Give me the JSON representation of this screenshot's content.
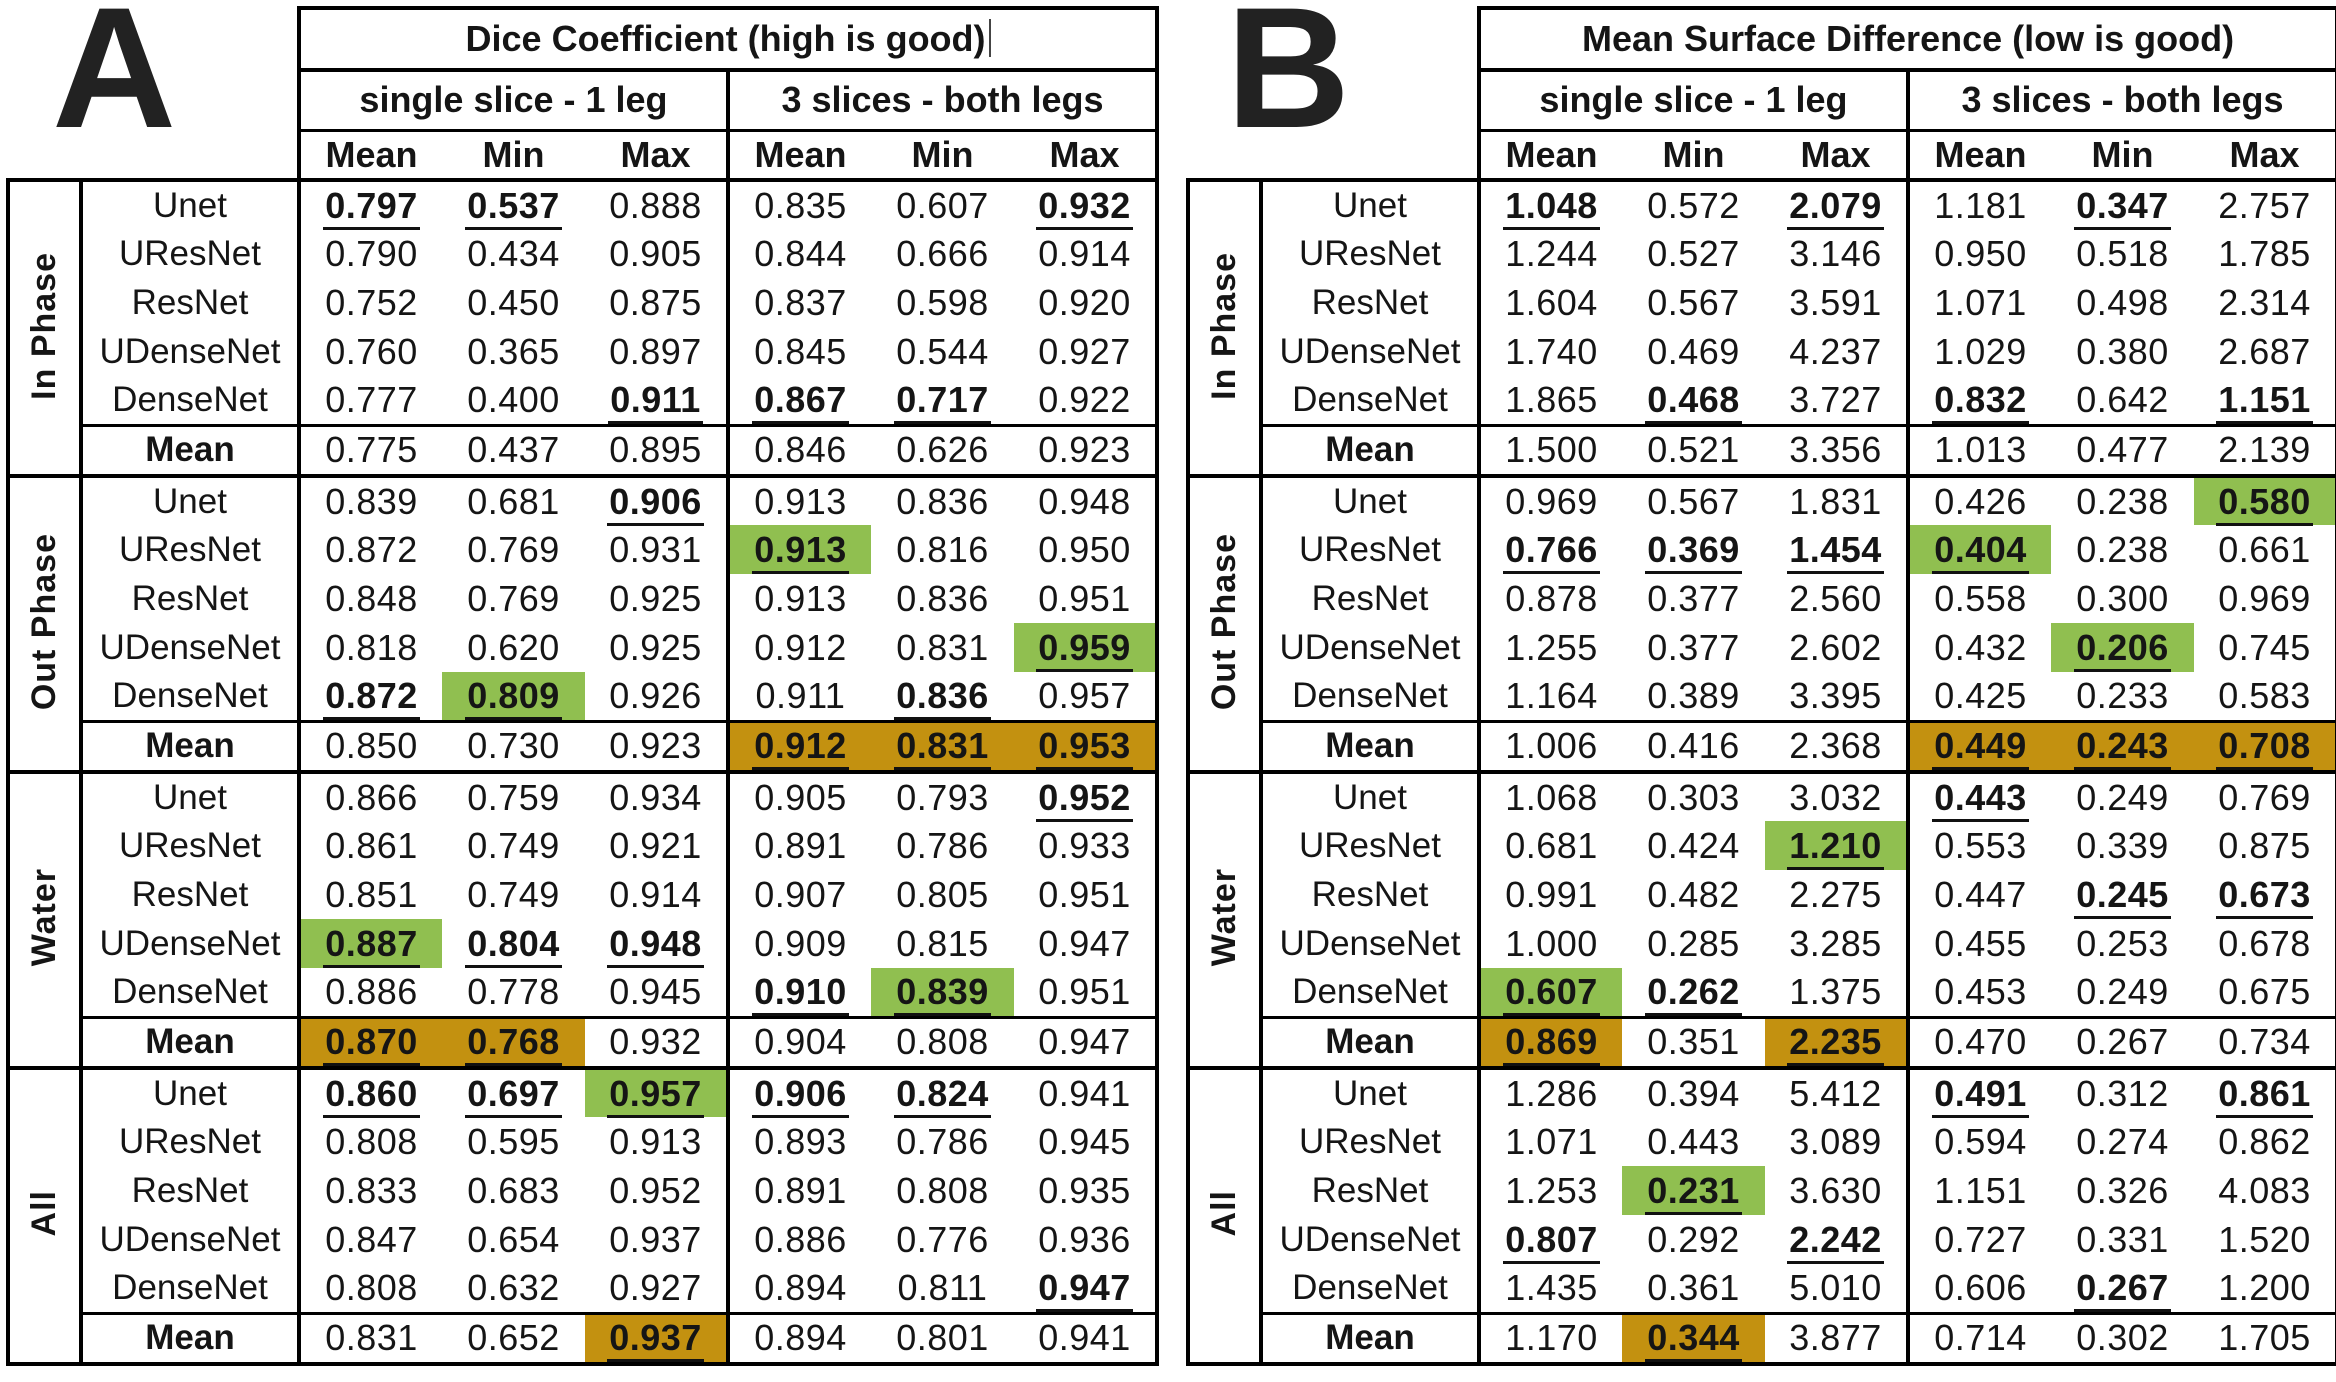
{
  "styles": {
    "highlight_green": "#90bf50",
    "highlight_orange": "#c39110",
    "text_color": "#151515",
    "border_color": "#000000"
  },
  "panels": [
    {
      "letter": "A",
      "title": "Dice Coefficient (high is good)",
      "title_cursor": true,
      "groups": [
        "single slice - 1 leg",
        "3 slices - both legs"
      ],
      "columns": [
        "Mean",
        "Min",
        "Max",
        "Mean",
        "Min",
        "Max"
      ],
      "sections": [
        {
          "label": "In Phase",
          "rows": [
            {
              "model": "Unet",
              "values": [
                {
                  "v": "0.797",
                  "s": "u"
                },
                {
                  "v": "0.537",
                  "s": "u"
                },
                "0.888",
                "0.835",
                "0.607",
                {
                  "v": "0.932",
                  "s": "u"
                }
              ]
            },
            {
              "model": "UResNet",
              "values": [
                "0.790",
                "0.434",
                "0.905",
                "0.844",
                "0.666",
                "0.914"
              ]
            },
            {
              "model": "ResNet",
              "values": [
                "0.752",
                "0.450",
                "0.875",
                "0.837",
                "0.598",
                "0.920"
              ]
            },
            {
              "model": "UDenseNet",
              "values": [
                "0.760",
                "0.365",
                "0.897",
                "0.845",
                "0.544",
                "0.927"
              ]
            },
            {
              "model": "DenseNet",
              "values": [
                "0.777",
                "0.400",
                {
                  "v": "0.911",
                  "s": "u"
                },
                {
                  "v": "0.867",
                  "s": "u"
                },
                {
                  "v": "0.717",
                  "s": "u"
                },
                "0.922"
              ]
            },
            {
              "model": "Mean",
              "mean": true,
              "values": [
                "0.775",
                "0.437",
                "0.895",
                "0.846",
                "0.626",
                "0.923"
              ]
            }
          ]
        },
        {
          "label": "Out Phase",
          "rows": [
            {
              "model": "Unet",
              "values": [
                "0.839",
                "0.681",
                {
                  "v": "0.906",
                  "s": "u"
                },
                "0.913",
                "0.836",
                "0.948"
              ]
            },
            {
              "model": "UResNet",
              "values": [
                "0.872",
                "0.769",
                "0.931",
                {
                  "v": "0.913",
                  "s": "g"
                },
                "0.816",
                "0.950"
              ]
            },
            {
              "model": "ResNet",
              "values": [
                "0.848",
                "0.769",
                "0.925",
                "0.913",
                "0.836",
                "0.951"
              ]
            },
            {
              "model": "UDenseNet",
              "values": [
                "0.818",
                "0.620",
                "0.925",
                "0.912",
                "0.831",
                {
                  "v": "0.959",
                  "s": "g"
                }
              ]
            },
            {
              "model": "DenseNet",
              "values": [
                {
                  "v": "0.872",
                  "s": "u"
                },
                {
                  "v": "0.809",
                  "s": "g"
                },
                "0.926",
                "0.911",
                {
                  "v": "0.836",
                  "s": "u"
                },
                "0.957"
              ]
            },
            {
              "model": "Mean",
              "mean": true,
              "values": [
                "0.850",
                "0.730",
                "0.923",
                {
                  "v": "0.912",
                  "s": "o"
                },
                {
                  "v": "0.831",
                  "s": "o"
                },
                {
                  "v": "0.953",
                  "s": "o"
                }
              ]
            }
          ]
        },
        {
          "label": "Water",
          "rows": [
            {
              "model": "Unet",
              "values": [
                "0.866",
                "0.759",
                "0.934",
                "0.905",
                "0.793",
                {
                  "v": "0.952",
                  "s": "u"
                }
              ]
            },
            {
              "model": "UResNet",
              "values": [
                "0.861",
                "0.749",
                "0.921",
                "0.891",
                "0.786",
                "0.933"
              ]
            },
            {
              "model": "ResNet",
              "values": [
                "0.851",
                "0.749",
                "0.914",
                "0.907",
                "0.805",
                "0.951"
              ]
            },
            {
              "model": "UDenseNet",
              "values": [
                {
                  "v": "0.887",
                  "s": "g"
                },
                {
                  "v": "0.804",
                  "s": "u"
                },
                {
                  "v": "0.948",
                  "s": "u"
                },
                "0.909",
                "0.815",
                "0.947"
              ]
            },
            {
              "model": "DenseNet",
              "values": [
                "0.886",
                "0.778",
                "0.945",
                {
                  "v": "0.910",
                  "s": "u"
                },
                {
                  "v": "0.839",
                  "s": "g"
                },
                "0.951"
              ]
            },
            {
              "model": "Mean",
              "mean": true,
              "values": [
                {
                  "v": "0.870",
                  "s": "o"
                },
                {
                  "v": "0.768",
                  "s": "o"
                },
                "0.932",
                "0.904",
                "0.808",
                "0.947"
              ]
            }
          ]
        },
        {
          "label": "All",
          "rows": [
            {
              "model": "Unet",
              "values": [
                {
                  "v": "0.860",
                  "s": "u"
                },
                {
                  "v": "0.697",
                  "s": "u"
                },
                {
                  "v": "0.957",
                  "s": "g"
                },
                {
                  "v": "0.906",
                  "s": "u"
                },
                {
                  "v": "0.824",
                  "s": "u"
                },
                "0.941"
              ]
            },
            {
              "model": "UResNet",
              "values": [
                "0.808",
                "0.595",
                "0.913",
                "0.893",
                "0.786",
                "0.945"
              ]
            },
            {
              "model": "ResNet",
              "values": [
                "0.833",
                "0.683",
                "0.952",
                "0.891",
                "0.808",
                "0.935"
              ]
            },
            {
              "model": "UDenseNet",
              "values": [
                "0.847",
                "0.654",
                "0.937",
                "0.886",
                "0.776",
                "0.936"
              ]
            },
            {
              "model": "DenseNet",
              "values": [
                "0.808",
                "0.632",
                "0.927",
                "0.894",
                "0.811",
                {
                  "v": "0.947",
                  "s": "u"
                }
              ]
            },
            {
              "model": "Mean",
              "mean": true,
              "values": [
                "0.831",
                "0.652",
                {
                  "v": "0.937",
                  "s": "o"
                },
                "0.894",
                "0.801",
                "0.941"
              ]
            }
          ]
        }
      ]
    },
    {
      "letter": "B",
      "title": "Mean Surface Difference (low is good)",
      "title_cursor": false,
      "groups": [
        "single slice - 1 leg",
        "3 slices - both legs"
      ],
      "columns": [
        "Mean",
        "Min",
        "Max",
        "Mean",
        "Min",
        "Max"
      ],
      "sections": [
        {
          "label": "In Phase",
          "rows": [
            {
              "model": "Unet",
              "values": [
                {
                  "v": "1.048",
                  "s": "u"
                },
                "0.572",
                {
                  "v": "2.079",
                  "s": "u"
                },
                "1.181",
                {
                  "v": "0.347",
                  "s": "u"
                },
                "2.757"
              ]
            },
            {
              "model": "UResNet",
              "values": [
                "1.244",
                "0.527",
                "3.146",
                "0.950",
                "0.518",
                "1.785"
              ]
            },
            {
              "model": "ResNet",
              "values": [
                "1.604",
                "0.567",
                "3.591",
                "1.071",
                "0.498",
                "2.314"
              ]
            },
            {
              "model": "UDenseNet",
              "values": [
                "1.740",
                "0.469",
                "4.237",
                "1.029",
                "0.380",
                "2.687"
              ]
            },
            {
              "model": "DenseNet",
              "values": [
                "1.865",
                {
                  "v": "0.468",
                  "s": "u"
                },
                "3.727",
                {
                  "v": "0.832",
                  "s": "u"
                },
                "0.642",
                {
                  "v": "1.151",
                  "s": "u"
                }
              ]
            },
            {
              "model": "Mean",
              "mean": true,
              "values": [
                "1.500",
                "0.521",
                "3.356",
                "1.013",
                "0.477",
                "2.139"
              ]
            }
          ]
        },
        {
          "label": "Out Phase",
          "rows": [
            {
              "model": "Unet",
              "values": [
                "0.969",
                "0.567",
                "1.831",
                "0.426",
                "0.238",
                {
                  "v": "0.580",
                  "s": "g"
                }
              ]
            },
            {
              "model": "UResNet",
              "values": [
                {
                  "v": "0.766",
                  "s": "u"
                },
                {
                  "v": "0.369",
                  "s": "u"
                },
                {
                  "v": "1.454",
                  "s": "u"
                },
                {
                  "v": "0.404",
                  "s": "g"
                },
                "0.238",
                "0.661"
              ]
            },
            {
              "model": "ResNet",
              "values": [
                "0.878",
                "0.377",
                "2.560",
                "0.558",
                "0.300",
                "0.969"
              ]
            },
            {
              "model": "UDenseNet",
              "values": [
                "1.255",
                "0.377",
                "2.602",
                "0.432",
                {
                  "v": "0.206",
                  "s": "g"
                },
                "0.745"
              ]
            },
            {
              "model": "DenseNet",
              "values": [
                "1.164",
                "0.389",
                "3.395",
                "0.425",
                "0.233",
                "0.583"
              ]
            },
            {
              "model": "Mean",
              "mean": true,
              "values": [
                "1.006",
                "0.416",
                "2.368",
                {
                  "v": "0.449",
                  "s": "o"
                },
                {
                  "v": "0.243",
                  "s": "o"
                },
                {
                  "v": "0.708",
                  "s": "o"
                }
              ]
            }
          ]
        },
        {
          "label": "Water",
          "rows": [
            {
              "model": "Unet",
              "values": [
                "1.068",
                "0.303",
                "3.032",
                {
                  "v": "0.443",
                  "s": "u"
                },
                "0.249",
                "0.769"
              ]
            },
            {
              "model": "UResNet",
              "values": [
                "0.681",
                "0.424",
                {
                  "v": "1.210",
                  "s": "g"
                },
                "0.553",
                "0.339",
                "0.875"
              ]
            },
            {
              "model": "ResNet",
              "values": [
                "0.991",
                "0.482",
                "2.275",
                "0.447",
                {
                  "v": "0.245",
                  "s": "u"
                },
                {
                  "v": "0.673",
                  "s": "u"
                }
              ]
            },
            {
              "model": "UDenseNet",
              "values": [
                "1.000",
                "0.285",
                "3.285",
                "0.455",
                "0.253",
                "0.678"
              ]
            },
            {
              "model": "DenseNet",
              "values": [
                {
                  "v": "0.607",
                  "s": "g"
                },
                {
                  "v": "0.262",
                  "s": "u"
                },
                "1.375",
                "0.453",
                "0.249",
                "0.675"
              ]
            },
            {
              "model": "Mean",
              "mean": true,
              "values": [
                {
                  "v": "0.869",
                  "s": "o"
                },
                "0.351",
                {
                  "v": "2.235",
                  "s": "o"
                },
                "0.470",
                "0.267",
                "0.734"
              ]
            }
          ]
        },
        {
          "label": "All",
          "rows": [
            {
              "model": "Unet",
              "values": [
                "1.286",
                "0.394",
                "5.412",
                {
                  "v": "0.491",
                  "s": "u"
                },
                "0.312",
                {
                  "v": "0.861",
                  "s": "u"
                }
              ]
            },
            {
              "model": "UResNet",
              "values": [
                "1.071",
                "0.443",
                "3.089",
                "0.594",
                "0.274",
                "0.862"
              ]
            },
            {
              "model": "ResNet",
              "values": [
                "1.253",
                {
                  "v": "0.231",
                  "s": "g"
                },
                "3.630",
                "1.151",
                "0.326",
                "4.083"
              ]
            },
            {
              "model": "UDenseNet",
              "values": [
                {
                  "v": "0.807",
                  "s": "u"
                },
                "0.292",
                {
                  "v": "2.242",
                  "s": "u"
                },
                "0.727",
                "0.331",
                "1.520"
              ]
            },
            {
              "model": "DenseNet",
              "values": [
                "1.435",
                "0.361",
                "5.010",
                "0.606",
                {
                  "v": "0.267",
                  "s": "u"
                },
                "1.200"
              ]
            },
            {
              "model": "Mean",
              "mean": true,
              "values": [
                "1.170",
                {
                  "v": "0.344",
                  "s": "o"
                },
                "3.877",
                "0.714",
                "0.302",
                "1.705"
              ]
            }
          ]
        }
      ]
    }
  ]
}
